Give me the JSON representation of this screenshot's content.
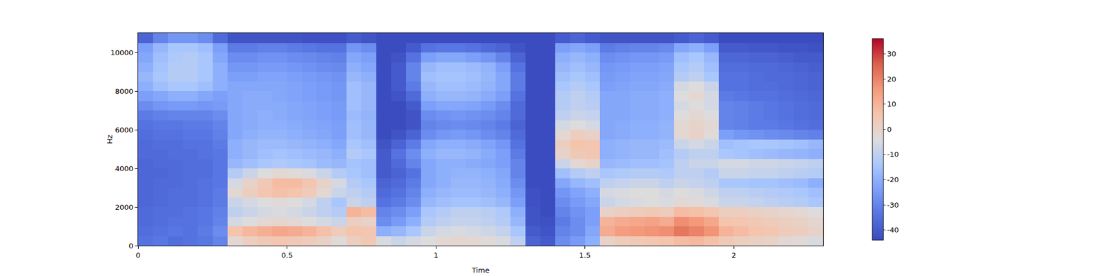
{
  "chart_data": {
    "type": "heatmap",
    "x_label": "Time",
    "y_label": "Hz",
    "xlim": [
      0,
      2.3
    ],
    "xticks": [
      0,
      0.5,
      1,
      1.5,
      2
    ],
    "ylim": [
      0,
      11000
    ],
    "yticks": [
      0,
      2000,
      4000,
      6000,
      8000,
      10000
    ],
    "clim": [
      -44,
      36
    ],
    "cticks": [
      -40,
      -30,
      -20,
      -10,
      0,
      10,
      20,
      30
    ],
    "x": [
      0.025,
      0.075,
      0.125,
      0.175,
      0.225,
      0.275,
      0.325,
      0.375,
      0.425,
      0.475,
      0.525,
      0.575,
      0.625,
      0.675,
      0.725,
      0.775,
      0.825,
      0.875,
      0.925,
      0.975,
      1.025,
      1.075,
      1.125,
      1.175,
      1.225,
      1.275,
      1.325,
      1.375,
      1.425,
      1.475,
      1.525,
      1.575,
      1.625,
      1.675,
      1.725,
      1.775,
      1.825,
      1.875,
      1.925,
      1.975,
      2.025,
      2.075,
      2.125,
      2.175,
      2.225,
      2.275
    ],
    "y": [
      250,
      750,
      1250,
      1750,
      2250,
      2750,
      3250,
      3750,
      4250,
      4750,
      5250,
      5750,
      6250,
      6750,
      7250,
      7750,
      8250,
      8750,
      9250,
      9750,
      10250,
      10750
    ],
    "cells": [
      [
        -34,
        -33,
        -35,
        -34,
        -33,
        -30,
        -2,
        2,
        4,
        5,
        4,
        3,
        1,
        -3,
        2,
        4,
        -5,
        -8,
        -6,
        -4,
        -2,
        -1,
        -2,
        -3,
        -5,
        -10,
        -38,
        -40,
        -28,
        -25,
        -20,
        0,
        3,
        4,
        5,
        6,
        8,
        9,
        7,
        4,
        2,
        1,
        0,
        -2,
        -3,
        -5
      ],
      [
        -35,
        -34,
        -33,
        -34,
        -32,
        -28,
        6,
        9,
        11,
        13,
        12,
        10,
        7,
        3,
        6,
        5,
        -20,
        -18,
        -14,
        -8,
        -6,
        -5,
        -6,
        -7,
        -9,
        -14,
        -40,
        -42,
        -30,
        -28,
        -22,
        12,
        15,
        16,
        17,
        18,
        22,
        20,
        17,
        10,
        8,
        6,
        5,
        3,
        2,
        0
      ],
      [
        -36,
        -35,
        -34,
        -34,
        -33,
        -30,
        -6,
        -4,
        -2,
        -1,
        -2,
        -4,
        -6,
        -8,
        2,
        0,
        -28,
        -25,
        -20,
        -12,
        -10,
        -9,
        -9,
        -10,
        -12,
        -18,
        -42,
        -43,
        -32,
        -28,
        -24,
        10,
        12,
        13,
        14,
        12,
        18,
        16,
        13,
        6,
        5,
        4,
        3,
        2,
        1,
        -1
      ],
      [
        -36,
        -35,
        -35,
        -34,
        -33,
        -31,
        -10,
        -8,
        -6,
        -5,
        -6,
        -8,
        -10,
        -12,
        10,
        8,
        -30,
        -28,
        -24,
        -14,
        -12,
        -10,
        -10,
        -11,
        -13,
        -20,
        -42,
        -44,
        -30,
        -27,
        -24,
        0,
        2,
        3,
        4,
        3,
        8,
        7,
        5,
        2,
        2,
        1,
        0,
        -1,
        -2,
        -4
      ],
      [
        -37,
        -36,
        -35,
        -35,
        -34,
        -32,
        -8,
        -6,
        -4,
        -3,
        -4,
        -6,
        -10,
        -14,
        -8,
        -10,
        -34,
        -32,
        -28,
        -18,
        -16,
        -15,
        -15,
        -16,
        -18,
        -24,
        -43,
        -44,
        -28,
        -25,
        -22,
        -8,
        -6,
        -5,
        -4,
        -5,
        -2,
        -3,
        -5,
        -8,
        -8,
        -9,
        -10,
        -11,
        -12,
        -14
      ],
      [
        -37,
        -36,
        -35,
        -35,
        -34,
        -32,
        -2,
        2,
        5,
        7,
        6,
        3,
        -2,
        -8,
        -10,
        -12,
        -36,
        -34,
        -30,
        -20,
        -18,
        -17,
        -17,
        -18,
        -20,
        -26,
        -43,
        -44,
        -26,
        -23,
        -20,
        -6,
        -5,
        -4,
        -4,
        -6,
        -4,
        -5,
        -7,
        -10,
        -10,
        -11,
        -12,
        -13,
        -14,
        -16
      ],
      [
        -37,
        -36,
        -36,
        -35,
        -34,
        -33,
        -6,
        0,
        4,
        8,
        8,
        5,
        0,
        -6,
        -12,
        -14,
        -38,
        -36,
        -32,
        -22,
        -20,
        -18,
        -18,
        -19,
        -21,
        -28,
        -44,
        -44,
        -22,
        -18,
        -16,
        -10,
        -9,
        -8,
        -8,
        -10,
        -8,
        -9,
        -10,
        -14,
        -14,
        -15,
        -15,
        -16,
        -17,
        -20
      ],
      [
        -37,
        -37,
        -36,
        -35,
        -35,
        -33,
        -12,
        -8,
        -4,
        -2,
        -3,
        -5,
        -8,
        -12,
        -14,
        -16,
        -40,
        -38,
        -34,
        -22,
        -20,
        -19,
        -19,
        -20,
        -22,
        -30,
        -44,
        -44,
        -16,
        -12,
        -10,
        -14,
        -13,
        -12,
        -12,
        -13,
        -10,
        -10,
        -12,
        -8,
        -8,
        -9,
        -9,
        -10,
        -11,
        -12
      ],
      [
        -37,
        -36,
        -36,
        -35,
        -35,
        -33,
        -18,
        -16,
        -14,
        -13,
        -14,
        -15,
        -17,
        -18,
        -15,
        -16,
        -40,
        -36,
        -30,
        -22,
        -20,
        -20,
        -21,
        -22,
        -24,
        -30,
        -44,
        -44,
        -8,
        -2,
        0,
        -18,
        -17,
        -16,
        -16,
        -15,
        -10,
        -8,
        -8,
        -6,
        -6,
        -7,
        -7,
        -8,
        -9,
        -10
      ],
      [
        -36,
        -36,
        -35,
        -35,
        -34,
        -33,
        -20,
        -18,
        -16,
        -15,
        -16,
        -17,
        -18,
        -20,
        -12,
        -14,
        -40,
        -34,
        -28,
        -20,
        -18,
        -18,
        -19,
        -21,
        -24,
        -32,
        -44,
        -44,
        0,
        4,
        5,
        -20,
        -19,
        -18,
        -18,
        -16,
        -12,
        -10,
        -10,
        -14,
        -15,
        -16,
        -17,
        -18,
        -19,
        -20
      ],
      [
        -36,
        -35,
        -35,
        -34,
        -34,
        -32,
        -20,
        -18,
        -17,
        -17,
        -18,
        -19,
        -20,
        -22,
        -14,
        -16,
        -42,
        -38,
        -32,
        -22,
        -20,
        -20,
        -21,
        -23,
        -26,
        -34,
        -44,
        -44,
        2,
        6,
        5,
        -20,
        -19,
        -18,
        -18,
        -17,
        -8,
        -6,
        -8,
        -16,
        -15,
        -14,
        -14,
        -15,
        -16,
        -18
      ],
      [
        -35,
        -34,
        -34,
        -33,
        -33,
        -31,
        -22,
        -20,
        -19,
        -19,
        -20,
        -21,
        -22,
        -24,
        -16,
        -18,
        -44,
        -42,
        -38,
        -28,
        -26,
        -25,
        -26,
        -28,
        -30,
        -36,
        -44,
        -44,
        -2,
        2,
        0,
        -22,
        -21,
        -20,
        -20,
        -19,
        -2,
        0,
        -3,
        -24,
        -26,
        -27,
        -28,
        -29,
        -30,
        -31
      ],
      [
        -34,
        -33,
        -33,
        -32,
        -32,
        -30,
        -22,
        -21,
        -20,
        -20,
        -21,
        -22,
        -23,
        -24,
        -16,
        -18,
        -44,
        -44,
        -42,
        -30,
        -29,
        -28,
        -29,
        -30,
        -32,
        -38,
        -44,
        -44,
        -6,
        -4,
        -6,
        -22,
        -21,
        -20,
        -20,
        -19,
        -2,
        0,
        -2,
        -30,
        -31,
        -32,
        -32,
        -33,
        -34,
        -35
      ],
      [
        -32,
        -31,
        -30,
        -30,
        -30,
        -28,
        -22,
        -21,
        -20,
        -21,
        -22,
        -23,
        -24,
        -25,
        -17,
        -19,
        -44,
        -44,
        -42,
        -28,
        -27,
        -26,
        -27,
        -28,
        -30,
        -36,
        -44,
        -44,
        -10,
        -8,
        -9,
        -22,
        -22,
        -21,
        -21,
        -20,
        -4,
        -2,
        -4,
        -30,
        -31,
        -32,
        -33,
        -34,
        -35,
        -36
      ],
      [
        -28,
        -26,
        -25,
        -25,
        -26,
        -25,
        -22,
        -21,
        -21,
        -21,
        -22,
        -23,
        -24,
        -25,
        -16,
        -18,
        -44,
        -44,
        -40,
        -24,
        -22,
        -22,
        -23,
        -25,
        -28,
        -36,
        -44,
        -44,
        -12,
        -10,
        -11,
        -22,
        -22,
        -21,
        -21,
        -20,
        -6,
        -4,
        -6,
        -30,
        -31,
        -32,
        -33,
        -34,
        -35,
        -36
      ],
      [
        -24,
        -22,
        -20,
        -20,
        -22,
        -24,
        -22,
        -21,
        -21,
        -22,
        -23,
        -24,
        -25,
        -26,
        -16,
        -18,
        -44,
        -42,
        -36,
        -20,
        -18,
        -18,
        -19,
        -21,
        -24,
        -34,
        -44,
        -44,
        -12,
        -10,
        -12,
        -22,
        -22,
        -21,
        -21,
        -20,
        -4,
        -2,
        -6,
        -32,
        -33,
        -34,
        -34,
        -35,
        -36,
        -37
      ],
      [
        -20,
        -16,
        -14,
        -14,
        -16,
        -20,
        -22,
        -22,
        -22,
        -22,
        -23,
        -24,
        -25,
        -26,
        -16,
        -18,
        -44,
        -40,
        -32,
        -18,
        -16,
        -16,
        -17,
        -19,
        -22,
        -32,
        -44,
        -44,
        -14,
        -12,
        -14,
        -24,
        -23,
        -22,
        -22,
        -21,
        -6,
        -4,
        -8,
        -34,
        -34,
        -35,
        -35,
        -36,
        -37,
        -38
      ],
      [
        -18,
        -14,
        -12,
        -12,
        -14,
        -20,
        -24,
        -24,
        -23,
        -23,
        -24,
        -25,
        -26,
        -27,
        -18,
        -20,
        -44,
        -40,
        -30,
        -16,
        -15,
        -15,
        -16,
        -18,
        -22,
        -32,
        -44,
        -44,
        -16,
        -14,
        -16,
        -25,
        -24,
        -23,
        -23,
        -22,
        -12,
        -10,
        -14,
        -34,
        -34,
        -35,
        -36,
        -36,
        -37,
        -38
      ],
      [
        -20,
        -15,
        -12,
        -12,
        -14,
        -20,
        -26,
        -26,
        -25,
        -25,
        -26,
        -27,
        -28,
        -29,
        -20,
        -22,
        -44,
        -40,
        -30,
        -18,
        -16,
        -16,
        -17,
        -19,
        -24,
        -34,
        -44,
        -44,
        -18,
        -16,
        -18,
        -26,
        -25,
        -24,
        -24,
        -23,
        -14,
        -12,
        -16,
        -35,
        -35,
        -36,
        -36,
        -37,
        -38,
        -39
      ],
      [
        -22,
        -16,
        -13,
        -12,
        -14,
        -22,
        -28,
        -28,
        -27,
        -27,
        -28,
        -29,
        -30,
        -31,
        -22,
        -24,
        -44,
        -42,
        -34,
        -24,
        -22,
        -22,
        -24,
        -26,
        -30,
        -38,
        -44,
        -44,
        -20,
        -18,
        -20,
        -28,
        -27,
        -26,
        -26,
        -25,
        -16,
        -14,
        -18,
        -37,
        -37,
        -38,
        -38,
        -39,
        -40,
        -40
      ],
      [
        -24,
        -18,
        -14,
        -14,
        -16,
        -24,
        -32,
        -32,
        -31,
        -31,
        -32,
        -33,
        -34,
        -34,
        -26,
        -28,
        -44,
        -44,
        -40,
        -34,
        -33,
        -33,
        -34,
        -36,
        -38,
        -42,
        -44,
        -44,
        -24,
        -22,
        -24,
        -32,
        -31,
        -30,
        -30,
        -29,
        -22,
        -20,
        -24,
        -40,
        -40,
        -41,
        -41,
        -42,
        -42,
        -43
      ],
      [
        -38,
        -30,
        -26,
        -26,
        -28,
        -36,
        -42,
        -42,
        -42,
        -42,
        -42,
        -43,
        -43,
        -43,
        -40,
        -42,
        -44,
        -44,
        -44,
        -44,
        -44,
        -44,
        -44,
        -44,
        -44,
        -44,
        -44,
        -44,
        -40,
        -38,
        -40,
        -42,
        -42,
        -42,
        -42,
        -42,
        -40,
        -38,
        -40,
        -44,
        -44,
        -44,
        -44,
        -44,
        -44,
        -44
      ]
    ]
  }
}
